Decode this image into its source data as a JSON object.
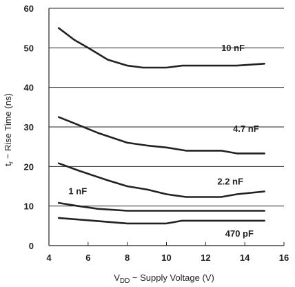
{
  "chart_data": {
    "type": "line",
    "title": "",
    "xlabel": {
      "main": "V",
      "sub": "DD",
      "rest": " − Supply Voltage (V)"
    },
    "ylabel": {
      "main": "t",
      "sub": "r",
      "rest": " − Rise Time (ns)"
    },
    "xlim": [
      4,
      16
    ],
    "ylim": [
      0,
      60
    ],
    "xticks": [
      "4",
      "6",
      "8",
      "10",
      "12",
      "14",
      "16"
    ],
    "yticks": [
      "0",
      "10",
      "20",
      "30",
      "40",
      "50",
      "60"
    ],
    "grid": "horizontal",
    "line_color": "#222222",
    "series": [
      {
        "name": "10 nF",
        "x": [
          4.5,
          5.3,
          6.0,
          7.0,
          8.0,
          8.8,
          10.0,
          10.8,
          12.0,
          13.6,
          15.0
        ],
        "y": [
          55.0,
          52.0,
          50.0,
          47.0,
          45.5,
          45.0,
          45.0,
          45.5,
          45.5,
          45.5,
          46.0
        ]
      },
      {
        "name": "4.7 nF",
        "x": [
          4.5,
          5.5,
          6.5,
          8.0,
          9.0,
          10.0,
          11.0,
          12.0,
          12.8,
          13.6,
          15.0
        ],
        "y": [
          32.5,
          30.5,
          28.5,
          26.0,
          25.3,
          24.8,
          24.0,
          24.0,
          24.0,
          23.3,
          23.3
        ]
      },
      {
        "name": "2.2 nF",
        "x": [
          4.5,
          5.5,
          7.0,
          8.0,
          9.0,
          10.0,
          11.0,
          12.0,
          12.8,
          13.6,
          15.0
        ],
        "y": [
          20.8,
          19.0,
          16.5,
          15.0,
          14.2,
          13.0,
          12.3,
          12.3,
          12.3,
          13.0,
          13.7
        ]
      },
      {
        "name": "1 nF",
        "x": [
          4.5,
          5.5,
          6.5,
          8.0,
          10.0,
          12.0,
          14.0,
          15.0
        ],
        "y": [
          10.8,
          10.0,
          9.3,
          8.8,
          8.8,
          8.8,
          8.8,
          8.8
        ]
      },
      {
        "name": "470 pF",
        "x": [
          4.5,
          6.0,
          8.0,
          10.0,
          10.8,
          12.0,
          14.0,
          15.0
        ],
        "y": [
          7.0,
          6.4,
          5.6,
          5.6,
          6.3,
          6.3,
          6.3,
          6.3
        ]
      }
    ],
    "annotations": [
      {
        "text": "10 nF",
        "x": 12.8,
        "y": 49.2
      },
      {
        "text": "4.7 nF",
        "x": 13.4,
        "y": 28.8
      },
      {
        "text": "2.2 nF",
        "x": 12.6,
        "y": 15.4
      },
      {
        "text": "1 nF",
        "x": 5.0,
        "y": 13.0
      },
      {
        "text": "470 pF",
        "x": 13.0,
        "y": 2.3
      }
    ]
  }
}
